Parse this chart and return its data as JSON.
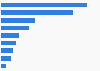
{
  "values": [
    26.5,
    22.0,
    10.5,
    8.5,
    5.5,
    4.5,
    3.5,
    3.0,
    1.5
  ],
  "bar_color": "#2f7fe0",
  "background_color": "#f9f9f9",
  "xlim": [
    0,
    30
  ],
  "bar_height": 0.6,
  "grid_color": "#dddddd"
}
